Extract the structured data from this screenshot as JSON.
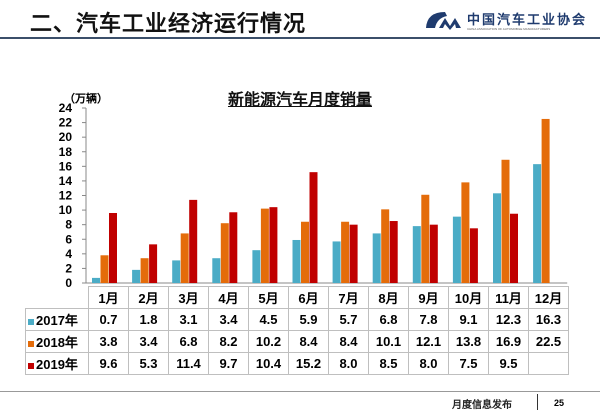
{
  "header": {
    "title": "二、汽车工业经济运行情况",
    "logo_cn": "中国汽车工业协会",
    "logo_en": "CHINA ASSOCIATION OF AUTOMOBILE MANUFACTURERS",
    "logo_mark": "CM"
  },
  "footer": {
    "text": "月度信息发布",
    "page": "25"
  },
  "chart_data": {
    "type": "bar",
    "title": "新能源汽车月度销量",
    "ylabel": "（万辆）",
    "ylim": [
      0,
      24
    ],
    "yticks": [
      0,
      2,
      4,
      6,
      8,
      10,
      12,
      14,
      16,
      18,
      20,
      22,
      24
    ],
    "categories": [
      "1月",
      "2月",
      "3月",
      "4月",
      "5月",
      "6月",
      "7月",
      "8月",
      "9月",
      "10月",
      "11月",
      "12月"
    ],
    "series": [
      {
        "name": "2017年",
        "color": "#4bacc6",
        "values": [
          0.7,
          1.8,
          3.1,
          3.4,
          4.5,
          5.9,
          5.7,
          6.8,
          7.8,
          9.1,
          12.3,
          16.3
        ]
      },
      {
        "name": "2018年",
        "color": "#e46c0a",
        "values": [
          3.8,
          3.4,
          6.8,
          8.2,
          10.2,
          8.4,
          8.4,
          10.1,
          12.1,
          13.8,
          16.9,
          22.5
        ]
      },
      {
        "name": "2019年",
        "color": "#c00000",
        "values": [
          9.6,
          5.3,
          11.4,
          9.7,
          10.4,
          15.2,
          8.0,
          8.5,
          8.0,
          7.5,
          9.5,
          null
        ]
      }
    ],
    "table_labels": [
      [
        "0.7",
        "1.8",
        "3.1",
        "3.4",
        "4.5",
        "5.9",
        "5.7",
        "6.8",
        "7.8",
        "9.1",
        "12.3",
        "16.3"
      ],
      [
        "3.8",
        "3.4",
        "6.8",
        "8.2",
        "10.2",
        "8.4",
        "8.4",
        "10.1",
        "12.1",
        "13.8",
        "16.9",
        "22.5"
      ],
      [
        "9.6",
        "5.3",
        "11.4",
        "9.7",
        "10.4",
        "15.2",
        "8.0",
        "8.5",
        "8.0",
        "7.5",
        "9.5",
        ""
      ]
    ]
  }
}
